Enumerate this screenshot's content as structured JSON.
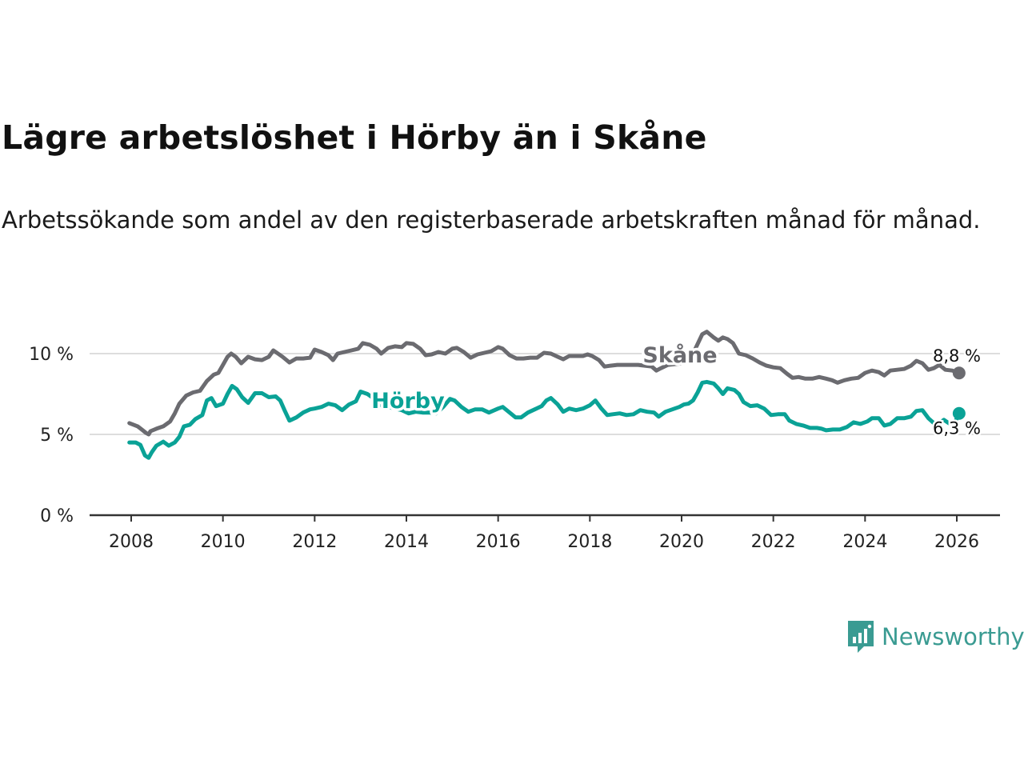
{
  "title": "Lägre arbetslöshet i Hörby än i Skåne",
  "subtitle": "Arbetssökande som andel av den registerbaserade arbetskraften månad för månad.",
  "brand": {
    "name": "Newsworthy",
    "icon": "newsworthy-logo-icon",
    "color": "#3a9b92"
  },
  "colors": {
    "skane": "#6b6b70",
    "horby": "#0aa296",
    "grid": "#dddddd",
    "axis": "#333333"
  },
  "chart_data": {
    "type": "line",
    "title": "Lägre arbetslöshet i Hörby än i Skåne",
    "xlabel": "",
    "ylabel": "",
    "xlim": [
      2007.4,
      2026.9
    ],
    "ylim": [
      0,
      10
    ],
    "y_ticks": [
      0,
      5,
      10
    ],
    "y_tick_labels": [
      "0 %",
      "5 %",
      "10 %"
    ],
    "x_ticks": [
      2008,
      2010,
      2012,
      2014,
      2016,
      2018,
      2020,
      2022,
      2024,
      2026
    ],
    "x_tick_labels": [
      "2008",
      "2010",
      "2012",
      "2014",
      "2016",
      "2018",
      "2020",
      "2022",
      "2024",
      "2026"
    ],
    "grid": true,
    "series": [
      {
        "name": "Skåne",
        "key": "skane",
        "end_label": "8,8 %",
        "points": [
          [
            2007.96,
            5.7
          ],
          [
            2008.05,
            5.6
          ],
          [
            2008.14,
            5.5
          ],
          [
            2008.23,
            5.3
          ],
          [
            2008.32,
            5.1
          ],
          [
            2008.38,
            5.0
          ],
          [
            2008.42,
            5.2
          ],
          [
            2008.55,
            5.35
          ],
          [
            2008.7,
            5.5
          ],
          [
            2008.85,
            5.8
          ],
          [
            2008.95,
            6.3
          ],
          [
            2009.05,
            6.9
          ],
          [
            2009.2,
            7.4
          ],
          [
            2009.35,
            7.6
          ],
          [
            2009.5,
            7.7
          ],
          [
            2009.65,
            8.3
          ],
          [
            2009.8,
            8.7
          ],
          [
            2009.9,
            8.8
          ],
          [
            2010.0,
            9.3
          ],
          [
            2010.1,
            9.8
          ],
          [
            2010.18,
            10.0
          ],
          [
            2010.28,
            9.8
          ],
          [
            2010.4,
            9.4
          ],
          [
            2010.55,
            9.8
          ],
          [
            2010.7,
            9.65
          ],
          [
            2010.85,
            9.6
          ],
          [
            2011.0,
            9.8
          ],
          [
            2011.1,
            10.2
          ],
          [
            2011.2,
            10.0
          ],
          [
            2011.3,
            9.8
          ],
          [
            2011.45,
            9.45
          ],
          [
            2011.6,
            9.7
          ],
          [
            2011.75,
            9.7
          ],
          [
            2011.9,
            9.75
          ],
          [
            2012.0,
            10.25
          ],
          [
            2012.15,
            10.1
          ],
          [
            2012.3,
            9.9
          ],
          [
            2012.4,
            9.6
          ],
          [
            2012.5,
            10.0
          ],
          [
            2012.65,
            10.1
          ],
          [
            2012.8,
            10.2
          ],
          [
            2012.95,
            10.3
          ],
          [
            2013.05,
            10.65
          ],
          [
            2013.2,
            10.55
          ],
          [
            2013.35,
            10.3
          ],
          [
            2013.45,
            10.0
          ],
          [
            2013.6,
            10.35
          ],
          [
            2013.75,
            10.45
          ],
          [
            2013.9,
            10.4
          ],
          [
            2014.0,
            10.65
          ],
          [
            2014.15,
            10.6
          ],
          [
            2014.3,
            10.3
          ],
          [
            2014.42,
            9.9
          ],
          [
            2014.55,
            9.95
          ],
          [
            2014.7,
            10.1
          ],
          [
            2014.85,
            10.0
          ],
          [
            2015.0,
            10.3
          ],
          [
            2015.1,
            10.35
          ],
          [
            2015.25,
            10.1
          ],
          [
            2015.4,
            9.75
          ],
          [
            2015.55,
            9.95
          ],
          [
            2015.7,
            10.05
          ],
          [
            2015.85,
            10.15
          ],
          [
            2016.0,
            10.4
          ],
          [
            2016.1,
            10.3
          ],
          [
            2016.25,
            9.9
          ],
          [
            2016.4,
            9.7
          ],
          [
            2016.55,
            9.7
          ],
          [
            2016.7,
            9.75
          ],
          [
            2016.85,
            9.75
          ],
          [
            2017.0,
            10.05
          ],
          [
            2017.15,
            10.0
          ],
          [
            2017.3,
            9.8
          ],
          [
            2017.42,
            9.65
          ],
          [
            2017.55,
            9.85
          ],
          [
            2017.7,
            9.85
          ],
          [
            2017.85,
            9.85
          ],
          [
            2017.95,
            9.95
          ],
          [
            2018.05,
            9.85
          ],
          [
            2018.2,
            9.6
          ],
          [
            2018.32,
            9.2
          ],
          [
            2018.45,
            9.25
          ],
          [
            2018.6,
            9.3
          ],
          [
            2018.75,
            9.3
          ],
          [
            2018.9,
            9.3
          ],
          [
            2019.05,
            9.3
          ],
          [
            2019.2,
            9.25
          ],
          [
            2019.35,
            9.2
          ],
          [
            2019.45,
            8.95
          ],
          [
            2019.55,
            9.1
          ],
          [
            2019.7,
            9.3
          ],
          [
            2020.0,
            9.4
          ],
          [
            2020.15,
            9.6
          ],
          [
            2020.3,
            10.3
          ],
          [
            2020.45,
            11.2
          ],
          [
            2020.55,
            11.35
          ],
          [
            2020.7,
            11.0
          ],
          [
            2020.8,
            10.8
          ],
          [
            2020.9,
            11.0
          ],
          [
            2021.0,
            10.9
          ],
          [
            2021.12,
            10.65
          ],
          [
            2021.25,
            10.0
          ],
          [
            2021.4,
            9.9
          ],
          [
            2021.55,
            9.7
          ],
          [
            2021.7,
            9.45
          ],
          [
            2021.85,
            9.25
          ],
          [
            2022.0,
            9.15
          ],
          [
            2022.15,
            9.1
          ],
          [
            2022.3,
            8.75
          ],
          [
            2022.42,
            8.5
          ],
          [
            2022.55,
            8.55
          ],
          [
            2022.7,
            8.45
          ],
          [
            2022.85,
            8.45
          ],
          [
            2023.0,
            8.55
          ],
          [
            2023.15,
            8.45
          ],
          [
            2023.28,
            8.35
          ],
          [
            2023.4,
            8.2
          ],
          [
            2023.55,
            8.35
          ],
          [
            2023.7,
            8.45
          ],
          [
            2023.85,
            8.5
          ],
          [
            2024.0,
            8.8
          ],
          [
            2024.15,
            8.95
          ],
          [
            2024.3,
            8.85
          ],
          [
            2024.42,
            8.65
          ],
          [
            2024.55,
            8.95
          ],
          [
            2024.7,
            9.0
          ],
          [
            2024.85,
            9.05
          ],
          [
            2025.0,
            9.25
          ],
          [
            2025.12,
            9.55
          ],
          [
            2025.25,
            9.4
          ],
          [
            2025.38,
            9.0
          ],
          [
            2025.5,
            9.1
          ],
          [
            2025.62,
            9.3
          ],
          [
            2025.75,
            9.0
          ],
          [
            2025.9,
            8.95
          ],
          [
            2026.05,
            8.8
          ]
        ]
      },
      {
        "name": "Hörby",
        "key": "horby",
        "end_label": "6,3 %",
        "points": [
          [
            2007.96,
            4.5
          ],
          [
            2008.1,
            4.5
          ],
          [
            2008.2,
            4.35
          ],
          [
            2008.3,
            3.7
          ],
          [
            2008.38,
            3.55
          ],
          [
            2008.45,
            3.9
          ],
          [
            2008.55,
            4.3
          ],
          [
            2008.7,
            4.55
          ],
          [
            2008.82,
            4.3
          ],
          [
            2008.95,
            4.5
          ],
          [
            2009.05,
            4.85
          ],
          [
            2009.15,
            5.5
          ],
          [
            2009.28,
            5.6
          ],
          [
            2009.4,
            5.95
          ],
          [
            2009.55,
            6.2
          ],
          [
            2009.65,
            7.1
          ],
          [
            2009.75,
            7.25
          ],
          [
            2009.85,
            6.75
          ],
          [
            2010.0,
            6.9
          ],
          [
            2010.1,
            7.5
          ],
          [
            2010.2,
            8.0
          ],
          [
            2010.3,
            7.8
          ],
          [
            2010.42,
            7.3
          ],
          [
            2010.55,
            6.95
          ],
          [
            2010.7,
            7.55
          ],
          [
            2010.85,
            7.55
          ],
          [
            2011.0,
            7.3
          ],
          [
            2011.15,
            7.35
          ],
          [
            2011.25,
            7.1
          ],
          [
            2011.35,
            6.45
          ],
          [
            2011.45,
            5.85
          ],
          [
            2011.6,
            6.05
          ],
          [
            2011.75,
            6.35
          ],
          [
            2011.9,
            6.55
          ],
          [
            2012.0,
            6.6
          ],
          [
            2012.15,
            6.7
          ],
          [
            2012.3,
            6.9
          ],
          [
            2012.45,
            6.8
          ],
          [
            2012.6,
            6.5
          ],
          [
            2012.75,
            6.85
          ],
          [
            2012.9,
            7.05
          ],
          [
            2013.0,
            7.65
          ],
          [
            2013.15,
            7.5
          ],
          [
            2013.3,
            7.2
          ],
          [
            2013.45,
            6.8
          ],
          [
            2013.6,
            6.7
          ],
          [
            2013.75,
            6.6
          ],
          [
            2013.9,
            6.5
          ],
          [
            2014.05,
            6.3
          ],
          [
            2014.2,
            6.4
          ],
          [
            2014.35,
            6.35
          ],
          [
            2014.5,
            6.35
          ],
          [
            2014.65,
            6.3
          ],
          [
            2014.8,
            6.7
          ],
          [
            2014.95,
            7.2
          ],
          [
            2015.05,
            7.1
          ],
          [
            2015.2,
            6.7
          ],
          [
            2015.35,
            6.4
          ],
          [
            2015.5,
            6.55
          ],
          [
            2015.65,
            6.55
          ],
          [
            2015.8,
            6.35
          ],
          [
            2016.0,
            6.6
          ],
          [
            2016.1,
            6.7
          ],
          [
            2016.25,
            6.35
          ],
          [
            2016.38,
            6.05
          ],
          [
            2016.5,
            6.05
          ],
          [
            2016.65,
            6.35
          ],
          [
            2016.8,
            6.55
          ],
          [
            2016.95,
            6.75
          ],
          [
            2017.05,
            7.1
          ],
          [
            2017.15,
            7.25
          ],
          [
            2017.3,
            6.85
          ],
          [
            2017.42,
            6.4
          ],
          [
            2017.55,
            6.6
          ],
          [
            2017.7,
            6.5
          ],
          [
            2017.85,
            6.6
          ],
          [
            2018.0,
            6.8
          ],
          [
            2018.12,
            7.1
          ],
          [
            2018.25,
            6.6
          ],
          [
            2018.38,
            6.2
          ],
          [
            2018.5,
            6.25
          ],
          [
            2018.65,
            6.3
          ],
          [
            2018.8,
            6.2
          ],
          [
            2018.95,
            6.25
          ],
          [
            2019.1,
            6.5
          ],
          [
            2019.25,
            6.4
          ],
          [
            2019.4,
            6.35
          ],
          [
            2019.5,
            6.1
          ],
          [
            2019.65,
            6.4
          ],
          [
            2019.8,
            6.55
          ],
          [
            2019.95,
            6.7
          ],
          [
            2020.05,
            6.85
          ],
          [
            2020.15,
            6.9
          ],
          [
            2020.25,
            7.1
          ],
          [
            2020.35,
            7.6
          ],
          [
            2020.45,
            8.2
          ],
          [
            2020.55,
            8.25
          ],
          [
            2020.7,
            8.15
          ],
          [
            2020.8,
            7.85
          ],
          [
            2020.9,
            7.5
          ],
          [
            2021.0,
            7.85
          ],
          [
            2021.15,
            7.75
          ],
          [
            2021.25,
            7.5
          ],
          [
            2021.35,
            7.0
          ],
          [
            2021.5,
            6.75
          ],
          [
            2021.65,
            6.8
          ],
          [
            2021.8,
            6.6
          ],
          [
            2021.95,
            6.2
          ],
          [
            2022.1,
            6.25
          ],
          [
            2022.25,
            6.25
          ],
          [
            2022.35,
            5.85
          ],
          [
            2022.5,
            5.65
          ],
          [
            2022.65,
            5.55
          ],
          [
            2022.8,
            5.4
          ],
          [
            2022.95,
            5.4
          ],
          [
            2023.05,
            5.35
          ],
          [
            2023.15,
            5.25
          ],
          [
            2023.3,
            5.3
          ],
          [
            2023.45,
            5.3
          ],
          [
            2023.6,
            5.45
          ],
          [
            2023.75,
            5.75
          ],
          [
            2023.9,
            5.65
          ],
          [
            2024.05,
            5.8
          ],
          [
            2024.15,
            6.0
          ],
          [
            2024.3,
            6.0
          ],
          [
            2024.42,
            5.55
          ],
          [
            2024.55,
            5.65
          ],
          [
            2024.7,
            6.0
          ],
          [
            2024.85,
            6.0
          ],
          [
            2025.0,
            6.1
          ],
          [
            2025.12,
            6.45
          ],
          [
            2025.25,
            6.5
          ],
          [
            2025.38,
            6.0
          ],
          [
            2025.5,
            5.7
          ],
          [
            2025.62,
            5.7
          ],
          [
            2025.72,
            5.9
          ],
          [
            2025.85,
            5.65
          ],
          [
            2025.95,
            5.7
          ],
          [
            2026.05,
            6.3
          ]
        ]
      }
    ]
  }
}
